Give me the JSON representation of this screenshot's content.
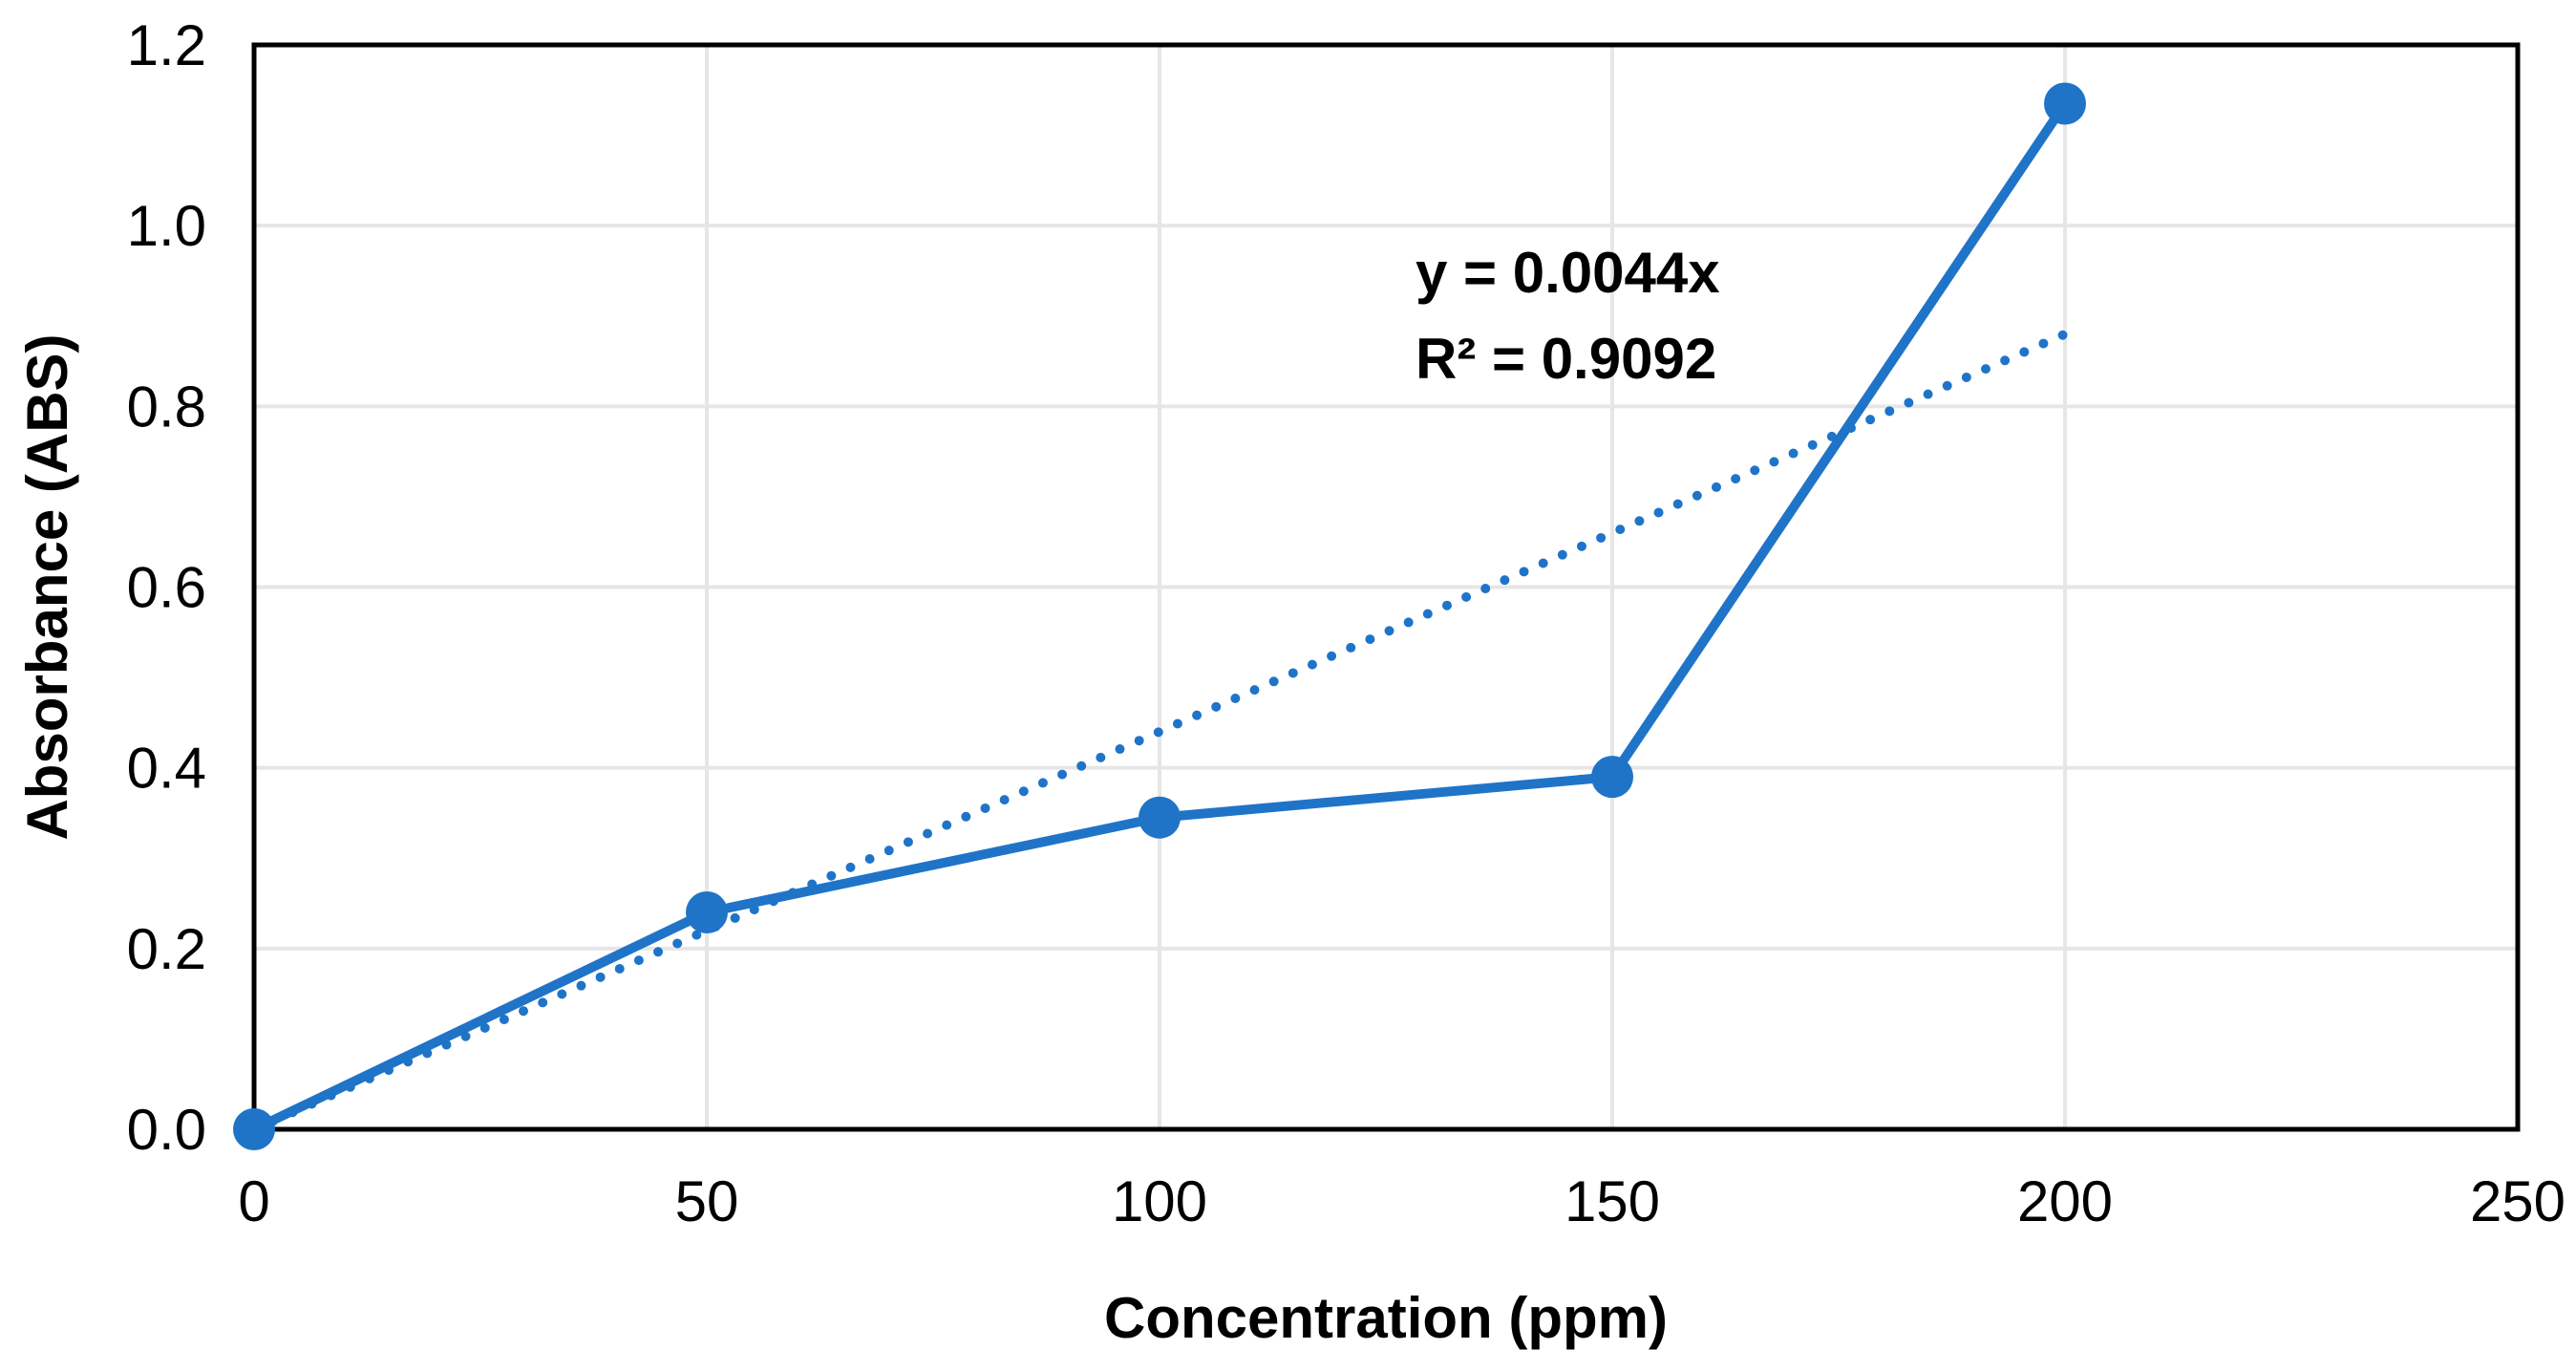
{
  "chart_data": {
    "type": "line",
    "title": "",
    "xlabel": "Concentration (ppm)",
    "ylabel": "Absorbance (ABS)",
    "xlim": [
      0,
      250
    ],
    "ylim": [
      0,
      1.2
    ],
    "x_ticks": [
      0,
      50,
      100,
      150,
      200,
      250
    ],
    "x_tick_labels": [
      "0",
      "50",
      "100",
      "150",
      "200",
      "250"
    ],
    "y_ticks": [
      0,
      0.2,
      0.4,
      0.6,
      0.8,
      1.0,
      1.2
    ],
    "y_tick_labels": [
      "0.0",
      "0.2",
      "0.4",
      "0.6",
      "0.8",
      "1.0",
      "1.2"
    ],
    "grid": true,
    "legend": "none",
    "series": [
      {
        "name": "Absorbance",
        "x": [
          0,
          50,
          100,
          150,
          200
        ],
        "values": [
          0.0,
          0.24,
          0.345,
          0.39,
          1.135
        ],
        "color": "#1f74c8",
        "marker": "circle",
        "line_style": "solid"
      }
    ],
    "trendline": {
      "type": "linear",
      "slope": 0.0044,
      "intercept": 0,
      "x_range": [
        0,
        200
      ],
      "color": "#1f74c8",
      "line_style": "dotted",
      "equation_label": "y = 0.0044x",
      "r_squared_label": "R² = 0.9092"
    }
  },
  "colors": {
    "series": "#1f74c8",
    "grid": "#e6e6e6",
    "axis_frame": "#000000",
    "text": "#000000"
  }
}
